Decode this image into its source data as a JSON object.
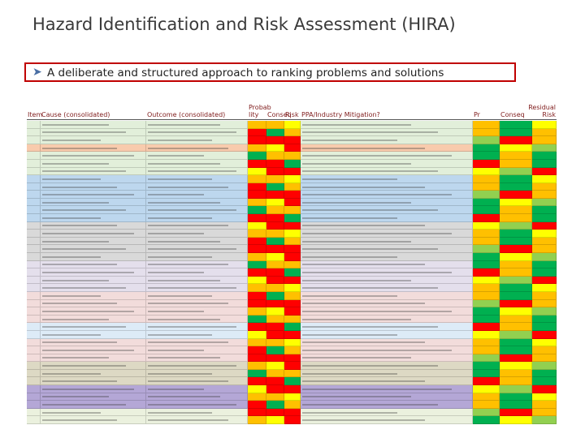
{
  "header": {
    "title": "Hazard Identification and Risk Assessment (HIRA)",
    "bullet": "A deliberate and structured approach to ranking problems and solutions"
  },
  "table": {
    "headers": [
      "Item",
      "Cause (consolidated)",
      "Outcome (consolidated)",
      "Probab lity",
      "Conseq",
      "Risk",
      "PPA/Industry Mitigation?",
      "Pr",
      "Conseq",
      "Residual Risk"
    ]
  }
}
